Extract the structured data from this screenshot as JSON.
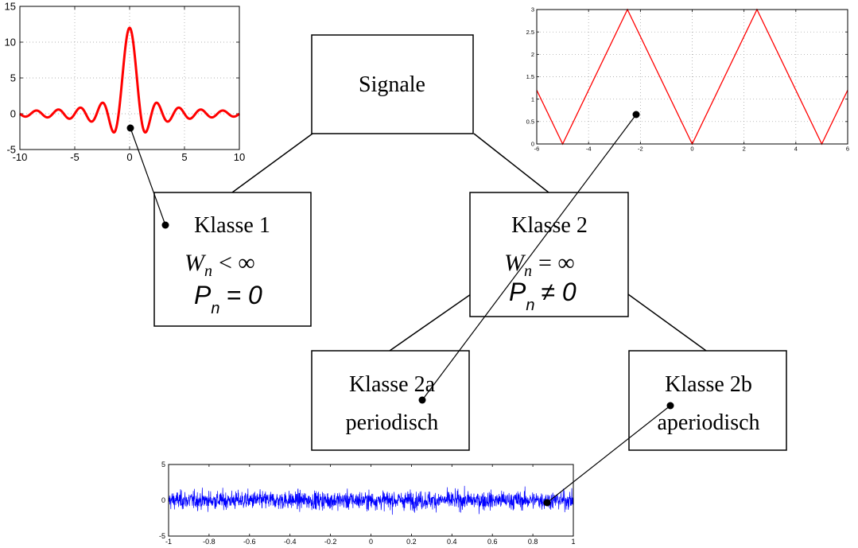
{
  "diagram": {
    "root": {
      "label": "Signale"
    },
    "class1": {
      "label": "Klasse 1",
      "energy_symbol": "W",
      "energy_sub": "n",
      "energy_rel": "< ∞",
      "power_symbol": "P",
      "power_sub": "n",
      "power_rel": "= 0"
    },
    "class2": {
      "label": "Klasse 2",
      "energy_symbol": "W",
      "energy_sub": "n",
      "energy_rel": "= ∞",
      "power_symbol": "P",
      "power_sub": "n",
      "power_rel": "≠ 0"
    },
    "class2a": {
      "label": "Klasse 2a",
      "sublabel": "periodisch"
    },
    "class2b": {
      "label": "Klasse 2b",
      "sublabel": "aperiodisch"
    }
  },
  "colors": {
    "sinc": "#ff0000",
    "triangle": "#ff0000",
    "noise": "#0000ff",
    "lines": "#000000"
  },
  "chart_data": [
    {
      "type": "line",
      "x_ticks": [
        -10,
        -5,
        0,
        5,
        10
      ],
      "y_ticks": [
        -5,
        0,
        5,
        10,
        15
      ],
      "xlim": [
        -10,
        10
      ],
      "ylim": [
        -5,
        15
      ],
      "grid": true,
      "series": [
        {
          "function": "12*sin(pi*x)/(pi*x)",
          "color": "#ff0000"
        }
      ]
    },
    {
      "type": "line",
      "x_ticks": [
        -6,
        -4,
        -2,
        0,
        2,
        4,
        6
      ],
      "y_ticks": [
        0,
        0.5,
        1,
        1.5,
        2,
        2.5,
        3
      ],
      "xlim": [
        -6,
        6
      ],
      "ylim": [
        0,
        3
      ],
      "grid": true,
      "series": [
        {
          "x": [
            -6,
            -5,
            -2.5,
            0,
            2.5,
            5,
            6
          ],
          "y": [
            1.2,
            0,
            3,
            0,
            3,
            0,
            1.2
          ],
          "color": "#ff0000"
        }
      ]
    },
    {
      "type": "line",
      "x_ticks": [
        -1,
        -0.8,
        -0.6,
        -0.4,
        -0.2,
        0,
        0.2,
        0.4,
        0.6,
        0.8,
        1
      ],
      "y_ticks": [
        -5,
        0,
        5
      ],
      "xlim": [
        -1,
        1
      ],
      "ylim": [
        -5,
        5
      ],
      "grid": false,
      "series": [
        {
          "description_free": true,
          "amplitude_range": [
            -2,
            2
          ],
          "color": "#0000ff"
        }
      ]
    }
  ]
}
